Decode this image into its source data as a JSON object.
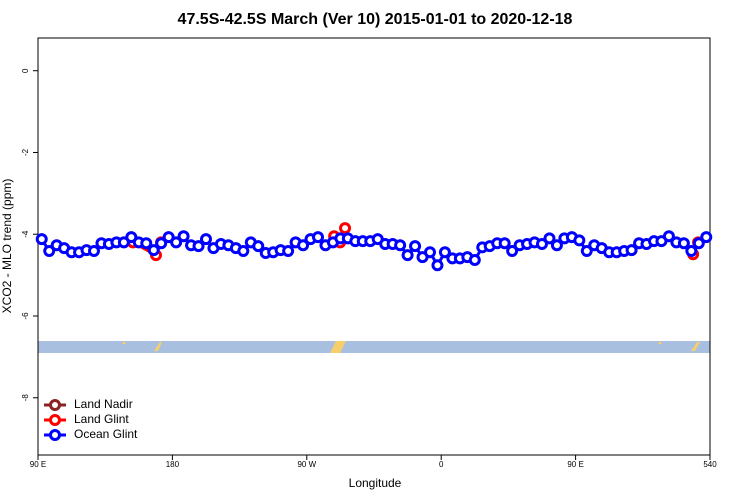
{
  "chart_data": {
    "type": "line",
    "title": "47.5S-42.5S March (Ver 10)   2015-01-01 to 2020-12-18",
    "x_label": "Longitude",
    "y_label": "XCO2 - MLO trend (ppm)",
    "xlim": [
      90,
      540
    ],
    "ylim": [
      -9.4,
      0.8
    ],
    "xticks": [
      {
        "value": 90,
        "label": "90 E"
      },
      180,
      {
        "value": 270,
        "label": "90 W"
      },
      {
        "value": 360,
        "label": "0"
      },
      {
        "value": 450,
        "label": "90 E"
      },
      540
    ],
    "yticks": [
      0,
      -2,
      -4,
      -6,
      -8
    ],
    "legend": "bottom-left",
    "series": [
      {
        "name": "Land Nadir",
        "color": "#8b2323",
        "x": [],
        "values": []
      },
      {
        "name": "Land Glint",
        "color": "#ff0000",
        "x": [
          153.6,
          169,
          172.4,
          null,
          288.3,
          292.3,
          295.6,
          null,
          528.7,
          532
        ],
        "values": [
          -4.2,
          -4.51,
          -4.2,
          null,
          -4.05,
          -4.2,
          -3.85,
          null,
          -4.49,
          -4.2
        ]
      },
      {
        "name": "Ocean Glint",
        "color": "#0000ff",
        "x": [
          92.5,
          97.5,
          102.5,
          107.5,
          112.5,
          117.5,
          122.5,
          127.5,
          132.5,
          137.5,
          142.5,
          147.5,
          152.5,
          157.5,
          162.5,
          167.5,
          172.5,
          177.5,
          182.5,
          187.5,
          192.5,
          197.5,
          202.5,
          207.5,
          212.5,
          217.5,
          222.5,
          227.5,
          232.5,
          237.5,
          242.5,
          247.5,
          252.5,
          257.5,
          262.5,
          267.5,
          272.5,
          277.5,
          282.5,
          287.5,
          292.5,
          297.5,
          302.5,
          307.5,
          312.5,
          317.5,
          322.5,
          327.5,
          332.5,
          337.5,
          342.5,
          347.5,
          352.5,
          357.5,
          362.5,
          367.5,
          372.5,
          377.5,
          382.5,
          387.5,
          392.5,
          397.5,
          402.5,
          407.5,
          412.5,
          417.5,
          422.5,
          427.5,
          432.5,
          437.5,
          442.5,
          447.5,
          452.5,
          457.5,
          462.5,
          467.5,
          472.5,
          477.5,
          482.5,
          487.5,
          492.5,
          497.5,
          502.5,
          507.5,
          512.5,
          517.5,
          522.5,
          527.5,
          532.5,
          537.5
        ],
        "values": [
          -4.12,
          -4.41,
          -4.27,
          -4.34,
          -4.44,
          -4.44,
          -4.39,
          -4.41,
          -4.22,
          -4.24,
          -4.2,
          -4.2,
          -4.07,
          -4.2,
          -4.22,
          -4.39,
          -4.22,
          -4.07,
          -4.2,
          -4.05,
          -4.27,
          -4.29,
          -4.12,
          -4.34,
          -4.24,
          -4.27,
          -4.34,
          -4.41,
          -4.2,
          -4.29,
          -4.46,
          -4.44,
          -4.39,
          -4.41,
          -4.2,
          -4.27,
          -4.12,
          -4.07,
          -4.27,
          -4.2,
          -4.1,
          -4.1,
          -4.17,
          -4.17,
          -4.17,
          -4.12,
          -4.24,
          -4.24,
          -4.27,
          -4.51,
          -4.29,
          -4.56,
          -4.44,
          -4.76,
          -4.44,
          -4.59,
          -4.59,
          -4.56,
          -4.63,
          -4.32,
          -4.29,
          -4.22,
          -4.22,
          -4.41,
          -4.27,
          -4.24,
          -4.2,
          -4.24,
          -4.1,
          -4.27,
          -4.1,
          -4.07,
          -4.15,
          -4.41,
          -4.27,
          -4.34,
          -4.44,
          -4.44,
          -4.41,
          -4.39,
          -4.22,
          -4.24,
          -4.17,
          -4.17,
          -4.05,
          -4.2,
          -4.22,
          -4.41,
          -4.22,
          -4.07
        ]
      }
    ]
  }
}
